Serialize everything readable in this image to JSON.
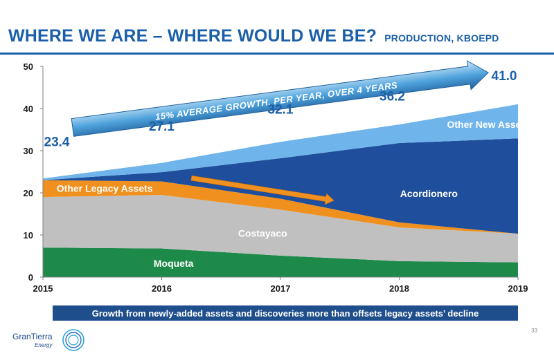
{
  "header": {
    "title": "WHERE WE ARE – WHERE WOULD WE BE?",
    "subtitle": "PRODUCTION, KBOEPD"
  },
  "chart_data": {
    "type": "area",
    "stacked": true,
    "x": [
      2015,
      2016,
      2017,
      2018,
      2019
    ],
    "ylim": [
      0,
      50
    ],
    "yticks": [
      0,
      10,
      20,
      30,
      40,
      50
    ],
    "xlabel": "",
    "ylabel": "",
    "grid": false,
    "series": [
      {
        "name": "Moqueta",
        "values": [
          7.0,
          6.8,
          5.1,
          3.8,
          3.5
        ],
        "color": "#1e8a4a"
      },
      {
        "name": "Costayaco",
        "values": [
          12.0,
          12.7,
          10.9,
          8.0,
          6.8
        ],
        "color": "#c0c0c0"
      },
      {
        "name": "Other Legacy Assets",
        "values": [
          4.0,
          3.2,
          2.6,
          1.2,
          0.0
        ],
        "color": "#f0901e"
      },
      {
        "name": "Acordionero",
        "values": [
          0.0,
          2.2,
          9.6,
          18.8,
          22.6
        ],
        "color": "#1f4e9c"
      },
      {
        "name": "Other New Assets",
        "values": [
          0.4,
          2.2,
          3.9,
          4.4,
          8.1
        ],
        "color": "#6fb4ea"
      }
    ],
    "totals": [
      "23.4",
      "27.1",
      "32.1",
      "36.2",
      "41.0"
    ],
    "annotations": {
      "growth_arrow": "15% AVERAGE GROWTH, PER YEAR, OVER 4 YEARS"
    }
  },
  "footer": {
    "banner": "Growth from newly-added assets and discoveries more than offsets legacy assets’ decline",
    "logo_text": "GranTierra",
    "logo_subtext": "Energy",
    "page_number": "33"
  },
  "colors": {
    "brand_blue": "#1a5fa8",
    "banner_blue": "#1f4e8c"
  }
}
